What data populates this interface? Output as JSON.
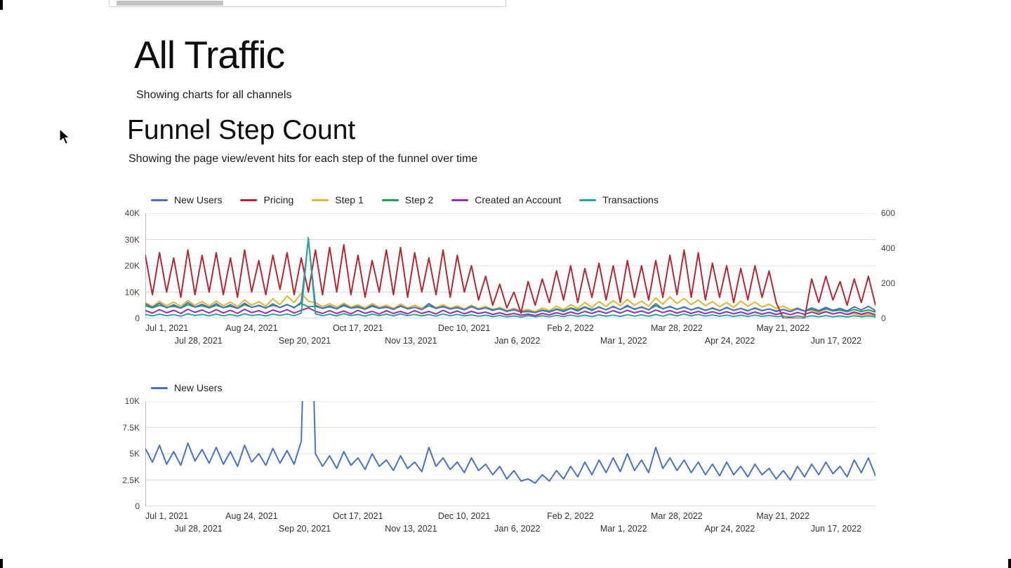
{
  "page": {
    "title": "All Traffic",
    "subtitle": "Showing charts for all channels",
    "section_title": "Funnel Step Count",
    "section_subtitle": "Showing the page view/event hits for each step of the funnel over time"
  },
  "colors": {
    "new_users_blue": "#4673c8",
    "pricing_red": "#bb2532",
    "step1_yellow": "#e6b333",
    "step2_green": "#1fa055",
    "created_account_purple": "#a02bb3",
    "transactions_teal": "#2aa5a0"
  },
  "chart_data": [
    {
      "type": "line",
      "title": "Funnel Step Count",
      "grid": true,
      "legend_position": "top",
      "x_max_days": 371,
      "x_step_days": 3.6019,
      "x_ticks": [
        {
          "label": "Jul 1, 2021",
          "day": 0
        },
        {
          "label": "Jul 28, 2021",
          "day": 27
        },
        {
          "label": "Aug 24, 2021",
          "day": 54
        },
        {
          "label": "Sep 20, 2021",
          "day": 81
        },
        {
          "label": "Oct 17, 2021",
          "day": 108
        },
        {
          "label": "Nov 13, 2021",
          "day": 135
        },
        {
          "label": "Dec 10, 2021",
          "day": 162
        },
        {
          "label": "Jan 6, 2022",
          "day": 189
        },
        {
          "label": "Feb 2, 2022",
          "day": 216
        },
        {
          "label": "Mar 1, 2022",
          "day": 243
        },
        {
          "label": "Mar 28, 2022",
          "day": 270
        },
        {
          "label": "Apr 24, 2022",
          "day": 297
        },
        {
          "label": "May 21, 2022",
          "day": 324
        },
        {
          "label": "Jun 17, 2022",
          "day": 351
        }
      ],
      "y_left": {
        "max": 40,
        "unit": "K",
        "ticks": [
          {
            "label": "40K",
            "value": 40
          },
          {
            "label": "30K",
            "value": 30
          },
          {
            "label": "20K",
            "value": 20
          },
          {
            "label": "10K",
            "value": 10
          },
          {
            "label": "0",
            "value": 0
          }
        ]
      },
      "y_right": {
        "max": 600,
        "ticks": [
          {
            "label": "600",
            "value": 600
          },
          {
            "label": "400",
            "value": 400
          },
          {
            "label": "200",
            "value": 200
          },
          {
            "label": "0",
            "value": 0
          }
        ]
      },
      "draw_order": [
        2,
        3,
        4,
        0,
        1,
        5
      ],
      "series": [
        {
          "name": "New Users",
          "color": "#4673c8",
          "axis": "left",
          "unit": "thousands",
          "values": [
            5.5,
            4.2,
            5.8,
            4.0,
            5.2,
            3.9,
            6.0,
            4.3,
            5.4,
            4.1,
            5.6,
            4.0,
            5.2,
            3.8,
            5.8,
            4.2,
            5.0,
            3.9,
            5.5,
            4.1,
            5.3,
            4.0,
            6.2,
            30,
            5.0,
            3.8,
            4.8,
            3.6,
            5.2,
            3.9,
            4.6,
            3.5,
            5.0,
            3.8,
            4.4,
            3.4,
            4.8,
            3.6,
            4.2,
            3.3,
            5.6,
            3.8,
            4.6,
            3.5,
            4.2,
            3.2,
            4.6,
            3.4,
            4.0,
            3.0,
            3.8,
            2.6,
            3.4,
            2.4,
            2.6,
            2.2,
            3.0,
            2.4,
            3.4,
            2.6,
            3.8,
            2.8,
            4.2,
            3.0,
            4.4,
            3.2,
            4.6,
            3.3,
            5.0,
            3.4,
            4.4,
            3.2,
            5.6,
            3.6,
            4.6,
            3.4,
            4.4,
            3.2,
            4.2,
            3.0,
            4.0,
            2.9,
            4.2,
            3.0,
            3.8,
            2.8,
            4.0,
            3.0,
            3.6,
            2.6,
            3.4,
            2.5,
            3.8,
            2.8,
            4.0,
            3.0,
            4.2,
            3.1,
            3.8,
            2.8,
            4.4,
            3.2,
            4.6,
            2.9
          ]
        },
        {
          "name": "Pricing",
          "color": "#bb2532",
          "axis": "left",
          "unit": "thousands",
          "values": [
            24,
            9,
            25,
            10,
            23,
            8,
            26,
            9,
            24,
            10,
            25,
            9,
            23,
            8,
            26,
            10,
            22,
            9,
            24,
            11,
            25,
            9,
            23,
            10,
            26,
            9,
            27,
            10,
            28,
            9,
            24,
            8,
            22,
            10,
            26,
            9,
            27,
            8,
            25,
            10,
            23,
            9,
            26,
            8,
            24,
            10,
            20,
            7,
            16,
            5,
            13,
            4,
            10,
            2,
            14,
            5,
            15,
            6,
            18,
            7,
            20,
            6,
            19,
            8,
            21,
            7,
            20,
            6,
            22,
            8,
            20,
            7,
            22,
            8,
            24,
            9,
            26,
            8,
            25,
            7,
            21,
            8,
            20,
            6,
            19,
            7,
            20,
            8,
            18,
            6,
            0,
            0,
            0,
            0,
            15,
            6,
            16,
            7,
            14,
            5,
            15,
            6,
            16,
            5
          ]
        },
        {
          "name": "Step 1",
          "color": "#e6b333",
          "axis": "left",
          "unit": "thousands",
          "values": [
            6.0,
            4.5,
            6.5,
            4.8,
            6.2,
            4.6,
            6.8,
            5.0,
            6.4,
            4.7,
            6.6,
            4.8,
            6.2,
            4.5,
            7.0,
            5.0,
            6.4,
            4.6,
            7.5,
            5.2,
            8.5,
            6.0,
            9.5,
            6.5,
            6.0,
            4.4,
            5.6,
            4.2,
            5.8,
            4.3,
            5.2,
            4.0,
            5.6,
            4.2,
            5.0,
            3.8,
            5.4,
            4.0,
            5.0,
            3.8,
            5.6,
            4.1,
            5.2,
            3.9,
            4.8,
            3.6,
            5.0,
            3.7,
            4.6,
            3.4,
            4.2,
            3.0,
            3.8,
            2.8,
            3.4,
            2.6,
            4.0,
            3.0,
            4.6,
            3.4,
            5.2,
            3.8,
            6.0,
            4.2,
            6.4,
            4.5,
            6.8,
            4.8,
            7.2,
            5.0,
            6.6,
            4.6,
            7.8,
            5.4,
            8.2,
            5.6,
            7.6,
            5.2,
            7.0,
            4.8,
            6.4,
            4.4,
            6.0,
            4.2,
            6.6,
            4.6,
            6.2,
            4.3,
            5.4,
            3.8,
            4.6,
            3.2,
            4.0,
            2.8,
            3.2,
            2.2,
            2.6,
            1.8,
            2.2,
            1.5,
            1.8,
            1.2,
            1.6,
            1.0
          ]
        },
        {
          "name": "Step 2",
          "color": "#1fa055",
          "axis": "left",
          "unit": "thousands",
          "values": [
            4.8,
            4.0,
            5.0,
            4.2,
            4.6,
            3.9,
            5.2,
            4.3,
            4.8,
            4.0,
            5.0,
            4.1,
            4.6,
            3.8,
            5.2,
            4.2,
            4.8,
            4.0,
            5.0,
            4.1,
            5.2,
            4.2,
            5.6,
            4.4,
            4.6,
            3.8,
            4.4,
            3.6,
            4.8,
            3.9,
            4.2,
            3.5,
            4.6,
            3.8,
            4.2,
            3.5,
            4.6,
            3.7,
            4.2,
            3.4,
            4.8,
            3.8,
            4.4,
            3.6,
            4.0,
            3.3,
            4.4,
            3.5,
            4.0,
            3.2,
            3.6,
            2.8,
            3.2,
            2.5,
            2.8,
            2.2,
            3.2,
            2.6,
            3.6,
            2.9,
            4.0,
            3.2,
            4.4,
            3.4,
            4.2,
            3.3,
            4.4,
            3.4,
            4.6,
            3.6,
            4.2,
            3.3,
            4.8,
            3.7,
            4.4,
            3.5,
            4.2,
            3.3,
            4.0,
            3.1,
            3.8,
            3.0,
            4.0,
            3.1,
            3.8,
            3.0,
            3.8,
            2.9,
            3.6,
            2.8,
            3.4,
            2.6,
            3.6,
            2.8,
            3.4,
            2.7,
            3.6,
            2.8,
            3.2,
            2.5,
            3.4,
            2.6,
            3.2,
            2.4
          ]
        },
        {
          "name": "Created an Account",
          "color": "#a02bb3",
          "axis": "right",
          "unit": "count",
          "values": [
            45,
            30,
            50,
            32,
            46,
            28,
            52,
            34,
            48,
            30,
            50,
            31,
            46,
            28,
            52,
            33,
            44,
            29,
            48,
            35,
            50,
            30,
            46,
            60,
            40,
            28,
            44,
            28,
            42,
            26,
            46,
            29,
            40,
            25,
            44,
            28,
            40,
            26,
            44,
            28,
            40,
            25,
            46,
            29,
            42,
            26,
            40,
            28,
            36,
            22,
            32,
            20,
            28,
            18,
            24,
            16,
            28,
            20,
            32,
            22,
            36,
            25,
            40,
            28,
            42,
            29,
            44,
            30,
            46,
            32,
            42,
            29,
            48,
            33,
            44,
            30,
            42,
            28,
            40,
            27,
            38,
            26,
            38,
            26,
            36,
            24,
            36,
            24,
            34,
            22,
            32,
            21,
            34,
            23,
            36,
            24,
            38,
            25,
            34,
            22,
            36,
            24,
            34,
            20
          ]
        },
        {
          "name": "Transactions",
          "color": "#2aa5a0",
          "axis": "right",
          "unit": "count",
          "values": [
            22,
            14,
            24,
            15,
            21,
            13,
            26,
            16,
            23,
            14,
            25,
            15,
            22,
            13,
            26,
            16,
            21,
            14,
            24,
            17,
            25,
            15,
            30,
            460,
            26,
            15,
            24,
            14,
            27,
            16,
            22,
            13,
            25,
            15,
            24,
            14,
            26,
            15,
            23,
            14,
            22,
            13,
            25,
            15,
            23,
            14,
            20,
            12,
            18,
            10,
            16,
            9,
            14,
            7,
            16,
            9,
            15,
            9,
            17,
            10,
            19,
            11,
            18,
            10,
            20,
            12,
            19,
            11,
            21,
            13,
            20,
            12,
            22,
            13,
            24,
            14,
            25,
            14,
            23,
            13,
            20,
            12,
            19,
            11,
            18,
            11,
            19,
            11,
            17,
            10,
            12,
            7,
            14,
            8,
            15,
            9,
            16,
            9,
            14,
            8,
            15,
            9,
            14,
            8
          ]
        }
      ]
    },
    {
      "type": "line",
      "title": "New Users",
      "grid": true,
      "legend_position": "top",
      "x_max_days": 371,
      "x_step_days": 3.6019,
      "x_ticks": [
        {
          "label": "Jul 1, 2021",
          "day": 0
        },
        {
          "label": "Jul 28, 2021",
          "day": 27
        },
        {
          "label": "Aug 24, 2021",
          "day": 54
        },
        {
          "label": "Sep 20, 2021",
          "day": 81
        },
        {
          "label": "Oct 17, 2021",
          "day": 108
        },
        {
          "label": "Nov 13, 2021",
          "day": 135
        },
        {
          "label": "Dec 10, 2021",
          "day": 162
        },
        {
          "label": "Jan 6, 2022",
          "day": 189
        },
        {
          "label": "Feb 2, 2022",
          "day": 216
        },
        {
          "label": "Mar 1, 2022",
          "day": 243
        },
        {
          "label": "Mar 28, 2022",
          "day": 270
        },
        {
          "label": "Apr 24, 2022",
          "day": 297
        },
        {
          "label": "May 21, 2022",
          "day": 324
        },
        {
          "label": "Jun 17, 2022",
          "day": 351
        }
      ],
      "y_left": {
        "max": 10,
        "unit": "K",
        "ticks": [
          {
            "label": "10K",
            "value": 10
          },
          {
            "label": "7.5K",
            "value": 7.5
          },
          {
            "label": "5K",
            "value": 5
          },
          {
            "label": "2.5K",
            "value": 2.5
          },
          {
            "label": "0",
            "value": 0
          }
        ]
      },
      "draw_order": [
        0
      ],
      "series": [
        {
          "name": "New Users",
          "color": "#4673c8",
          "axis": "left",
          "unit": "thousands",
          "values": [
            5.5,
            4.2,
            5.8,
            4.0,
            5.2,
            3.9,
            6.0,
            4.3,
            5.4,
            4.1,
            5.6,
            4.0,
            5.2,
            3.8,
            5.8,
            4.2,
            5.0,
            3.9,
            5.5,
            4.1,
            5.3,
            4.0,
            6.2,
            30,
            5.0,
            3.8,
            4.8,
            3.6,
            5.2,
            3.9,
            4.6,
            3.5,
            5.0,
            3.8,
            4.4,
            3.4,
            4.8,
            3.6,
            4.2,
            3.3,
            5.6,
            3.8,
            4.6,
            3.5,
            4.2,
            3.2,
            4.6,
            3.4,
            4.0,
            3.0,
            3.8,
            2.6,
            3.4,
            2.4,
            2.6,
            2.2,
            3.0,
            2.4,
            3.4,
            2.6,
            3.8,
            2.8,
            4.2,
            3.0,
            4.4,
            3.2,
            4.6,
            3.3,
            5.0,
            3.4,
            4.4,
            3.2,
            5.6,
            3.6,
            4.6,
            3.4,
            4.4,
            3.2,
            4.2,
            3.0,
            4.0,
            2.9,
            4.2,
            3.0,
            3.8,
            2.8,
            4.0,
            3.0,
            3.6,
            2.6,
            3.4,
            2.5,
            3.8,
            2.8,
            4.0,
            3.0,
            4.2,
            3.1,
            3.8,
            2.8,
            4.4,
            3.2,
            4.6,
            2.9
          ]
        }
      ]
    }
  ]
}
